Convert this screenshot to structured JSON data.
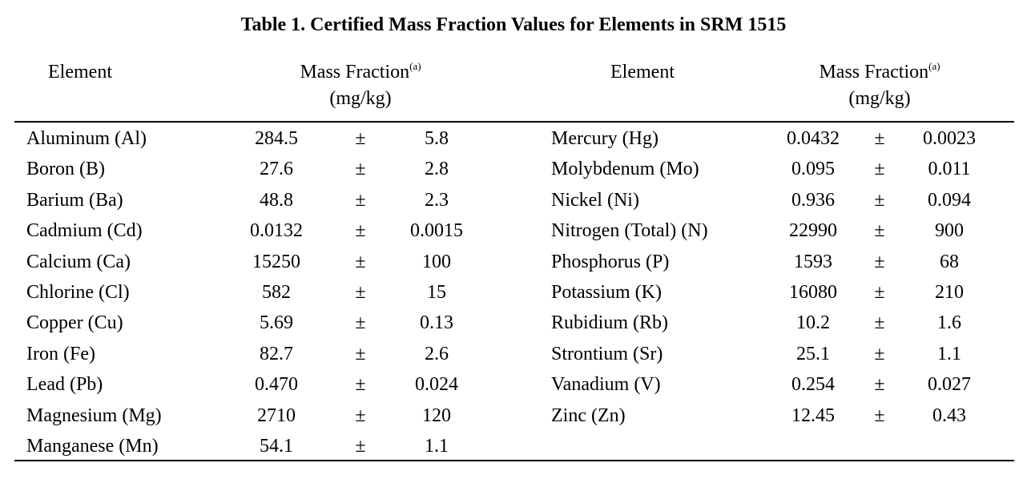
{
  "title": "Table 1. Certified Mass Fraction Values for Elements in SRM 1515",
  "headers": {
    "element": "Element",
    "mass_fraction": "Mass Fraction",
    "footnote_marker": "(a)",
    "units": "(mg/kg)"
  },
  "pm_symbol": "±",
  "left_rows": [
    {
      "element": "Aluminum (Al)",
      "value": "284.5",
      "uncertainty": "5.8"
    },
    {
      "element": "Boron (B)",
      "value": "27.6",
      "uncertainty": "2.8"
    },
    {
      "element": "Barium (Ba)",
      "value": "48.8",
      "uncertainty": "2.3"
    },
    {
      "element": "Cadmium (Cd)",
      "value": "0.0132",
      "uncertainty": "0.0015"
    },
    {
      "element": "Calcium (Ca)",
      "value": "15250",
      "uncertainty": "100"
    },
    {
      "element": "Chlorine (Cl)",
      "value": "582",
      "uncertainty": "15"
    },
    {
      "element": "Copper (Cu)",
      "value": "5.69",
      "uncertainty": "0.13"
    },
    {
      "element": "Iron (Fe)",
      "value": "82.7",
      "uncertainty": "2.6"
    },
    {
      "element": "Lead (Pb)",
      "value": "0.470",
      "uncertainty": "0.024"
    },
    {
      "element": "Magnesium (Mg)",
      "value": "2710",
      "uncertainty": "120"
    },
    {
      "element": "Manganese (Mn)",
      "value": "54.1",
      "uncertainty": "1.1"
    }
  ],
  "right_rows": [
    {
      "element": "Mercury (Hg)",
      "value": "0.0432",
      "uncertainty": "0.0023"
    },
    {
      "element": "Molybdenum (Mo)",
      "value": "0.095",
      "uncertainty": "0.011"
    },
    {
      "element": "Nickel (Ni)",
      "value": "0.936",
      "uncertainty": "0.094"
    },
    {
      "element": "Nitrogen (Total) (N)",
      "value": "22990",
      "uncertainty": "900"
    },
    {
      "element": "Phosphorus (P)",
      "value": "1593",
      "uncertainty": "68"
    },
    {
      "element": "Potassium (K)",
      "value": "16080",
      "uncertainty": "210"
    },
    {
      "element": "Rubidium (Rb)",
      "value": "10.2",
      "uncertainty": "1.6"
    },
    {
      "element": "Strontium (Sr)",
      "value": "25.1",
      "uncertainty": "1.1"
    },
    {
      "element": "Vanadium (V)",
      "value": "0.254",
      "uncertainty": "0.027"
    },
    {
      "element": "Zinc (Zn)",
      "value": "12.45",
      "uncertainty": "0.43"
    }
  ]
}
